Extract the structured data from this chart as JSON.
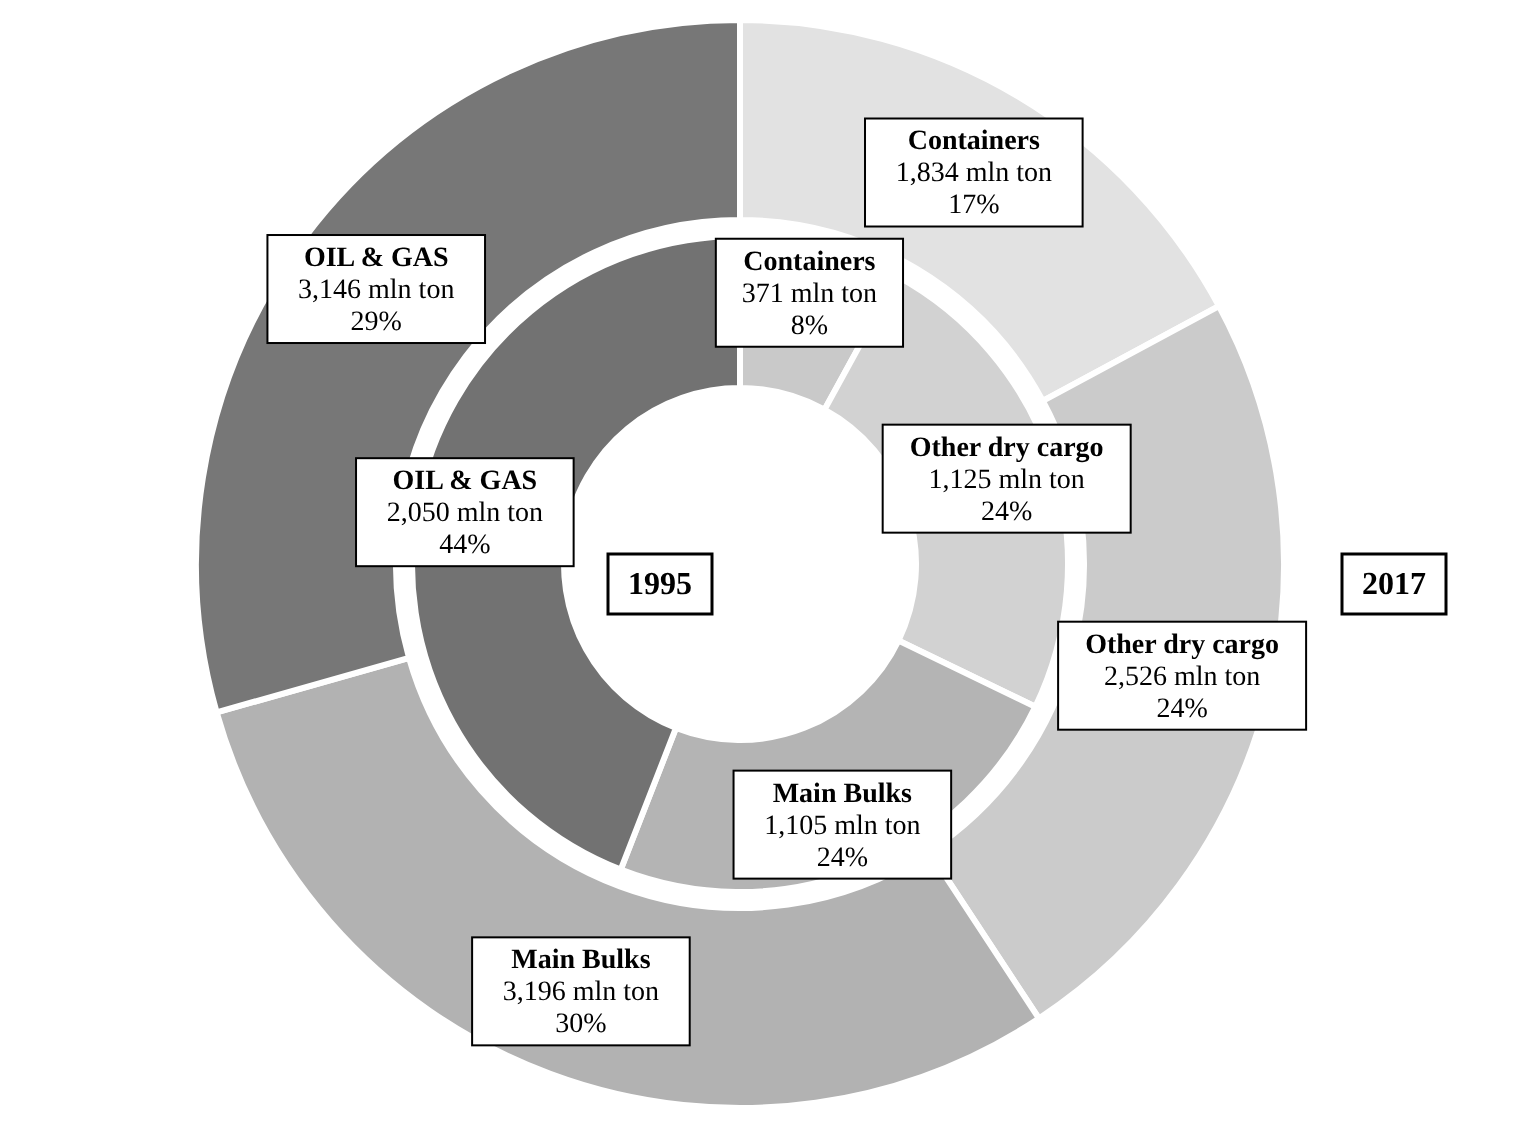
{
  "chart_data": {
    "type": "donut",
    "categories": [
      "Containers",
      "Other dry cargo",
      "Main Bulks",
      "OIL & GAS"
    ],
    "series": [
      {
        "name": "1995",
        "values": [
          371,
          1125,
          1105,
          2050
        ],
        "colors": [
          "#c9c9c9",
          "#d2d2d2",
          "#b4b4b4",
          "#727272"
        ],
        "value_labels": [
          "371 mln ton\n8%",
          "1,125 mln ton\n24%",
          "1,105 mln ton\n24%",
          "2,050 mln ton\n44%"
        ]
      },
      {
        "name": "2017",
        "values": [
          1834,
          2526,
          3196,
          3146
        ],
        "colors": [
          "#e2e2e2",
          "#cbcbcb",
          "#b2b2b2",
          "#777777"
        ],
        "value_labels": [
          "1,834 mln ton\n17%",
          "2,526 mln ton\n24%",
          "3,196 mln ton\n30%",
          "3,146 mln ton\n29%"
        ]
      }
    ]
  }
}
